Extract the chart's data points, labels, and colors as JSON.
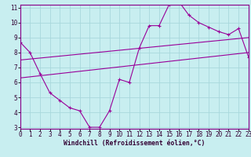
{
  "xlabel": "Windchill (Refroidissement éolien,°C)",
  "ylabel": "",
  "bg_color": "#c8eef0",
  "grid_color": "#a8d8dc",
  "line_color": "#990099",
  "xmin": 0,
  "xmax": 23,
  "ymin": 3,
  "ymax": 11,
  "line1_x": [
    0,
    1,
    2,
    3,
    4,
    5,
    6,
    7,
    8,
    9,
    10,
    11,
    12,
    13,
    14,
    15,
    16,
    17,
    18,
    19,
    20,
    21,
    22,
    23
  ],
  "line1_y": [
    8.7,
    8.0,
    6.6,
    5.3,
    4.8,
    4.3,
    4.1,
    3.0,
    3.0,
    4.1,
    6.2,
    6.0,
    8.3,
    9.8,
    9.8,
    11.2,
    11.4,
    10.5,
    10.0,
    9.7,
    9.4,
    9.2,
    9.6,
    7.7
  ],
  "line2_x": [
    0,
    23
  ],
  "line2_y": [
    7.5,
    9.0
  ],
  "line3_x": [
    0,
    23
  ],
  "line3_y": [
    6.3,
    8.0
  ],
  "xticks": [
    0,
    1,
    2,
    3,
    4,
    5,
    6,
    7,
    8,
    9,
    10,
    11,
    12,
    13,
    14,
    15,
    16,
    17,
    18,
    19,
    20,
    21,
    22,
    23
  ],
  "yticks": [
    3,
    4,
    5,
    6,
    7,
    8,
    9,
    10,
    11
  ],
  "tick_fontsize": 5.5,
  "xlabel_fontsize": 5.8,
  "marker": "+"
}
